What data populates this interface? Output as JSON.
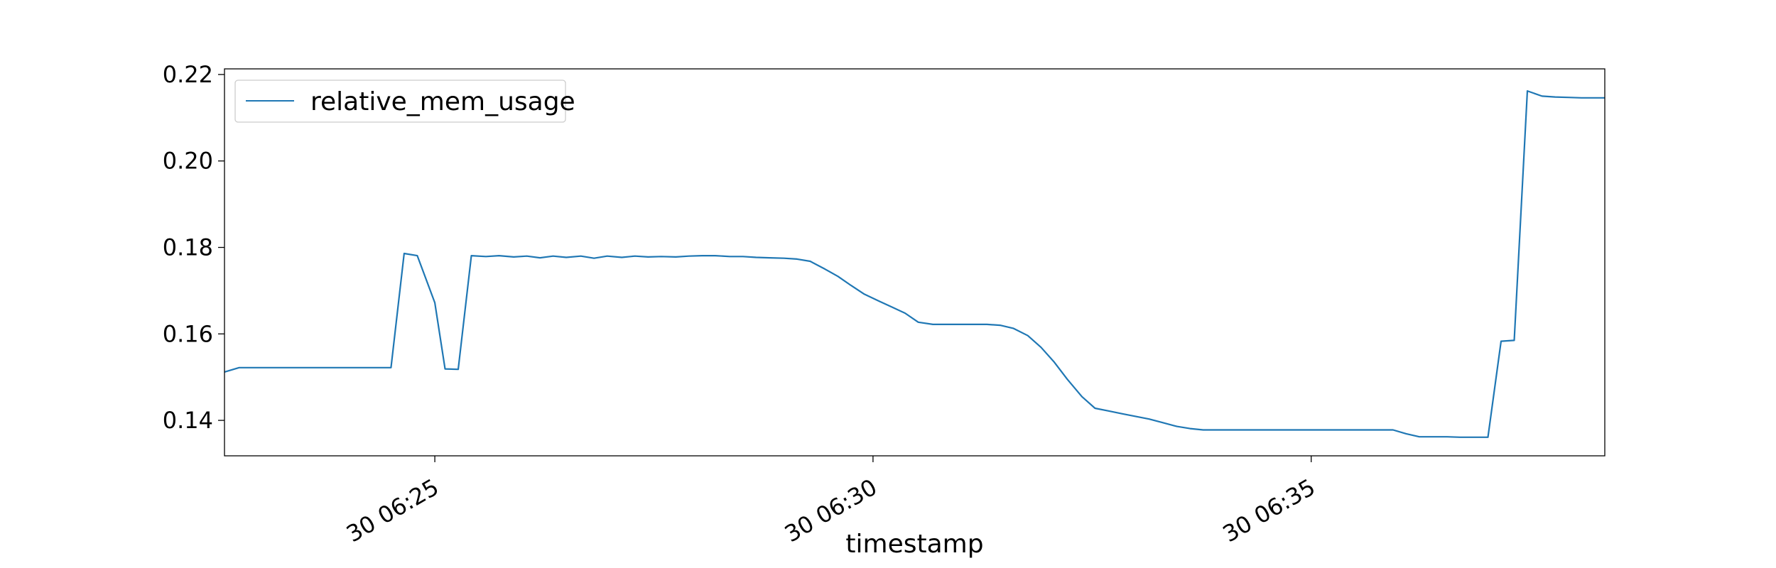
{
  "chart_data": {
    "type": "line",
    "title": "",
    "xlabel": "timestamp",
    "ylabel": "",
    "x_unit": "minutes",
    "xlim": [
      "06:22:36",
      "06:38:21"
    ],
    "ylim": [
      0.1318,
      0.2213
    ],
    "x_ticks": [
      {
        "x": "06:25:00",
        "label": "30 06:25"
      },
      {
        "x": "06:30:00",
        "label": "30 06:30"
      },
      {
        "x": "06:35:00",
        "label": "30 06:35"
      }
    ],
    "y_ticks": [
      {
        "y": 0.14,
        "label": "0.14"
      },
      {
        "y": 0.16,
        "label": "0.16"
      },
      {
        "y": 0.18,
        "label": "0.18"
      },
      {
        "y": 0.2,
        "label": "0.20"
      },
      {
        "y": 0.22,
        "label": "0.22"
      }
    ],
    "grid": false,
    "legend_position": "top-left",
    "series": [
      {
        "name": "relative_mem_usage",
        "color": "#1f77b4",
        "x": [
          "06:22:36",
          "06:22:46",
          "06:23:14",
          "06:23:42",
          "06:24:10",
          "06:24:30",
          "06:24:39",
          "06:24:48",
          "06:25:00",
          "06:25:07",
          "06:25:16",
          "06:25:25",
          "06:25:35",
          "06:25:44",
          "06:25:54",
          "06:26:03",
          "06:26:12",
          "06:26:21",
          "06:26:30",
          "06:26:40",
          "06:26:49",
          "06:26:58",
          "06:27:08",
          "06:27:17",
          "06:27:26",
          "06:27:35",
          "06:27:45",
          "06:27:54",
          "06:28:03",
          "06:28:12",
          "06:28:22",
          "06:28:31",
          "06:28:40",
          "06:28:49",
          "06:28:59",
          "06:29:08",
          "06:29:17",
          "06:29:27",
          "06:29:36",
          "06:29:45",
          "06:29:54",
          "06:30:04",
          "06:30:13",
          "06:30:22",
          "06:30:31",
          "06:30:41",
          "06:30:50",
          "06:30:59",
          "06:31:09",
          "06:31:18",
          "06:31:27",
          "06:31:36",
          "06:31:46",
          "06:31:55",
          "06:32:04",
          "06:32:13",
          "06:32:23",
          "06:32:32",
          "06:32:41",
          "06:32:51",
          "06:33:00",
          "06:33:09",
          "06:33:18",
          "06:33:28",
          "06:33:37",
          "06:33:46",
          "06:33:55",
          "06:34:05",
          "06:34:14",
          "06:34:23",
          "06:34:33",
          "06:34:42",
          "06:34:51",
          "06:35:00",
          "06:35:10",
          "06:35:19",
          "06:35:28",
          "06:35:37",
          "06:35:47",
          "06:35:56",
          "06:36:05",
          "06:36:14",
          "06:36:24",
          "06:36:33",
          "06:36:42",
          "06:36:52",
          "06:37:01",
          "06:37:10",
          "06:37:19",
          "06:37:28",
          "06:37:38",
          "06:37:47",
          "06:37:56",
          "06:38:05",
          "06:38:15",
          "06:38:21"
        ],
        "y": [
          0.1512,
          0.1522,
          0.1522,
          0.1522,
          0.1522,
          0.1522,
          0.1786,
          0.1781,
          0.1672,
          0.1519,
          0.1518,
          0.1781,
          0.1779,
          0.1781,
          0.1778,
          0.178,
          0.1776,
          0.178,
          0.1777,
          0.178,
          0.1775,
          0.178,
          0.1777,
          0.178,
          0.1778,
          0.1779,
          0.1778,
          0.178,
          0.1781,
          0.1781,
          0.1779,
          0.1779,
          0.1777,
          0.1776,
          0.1775,
          0.1773,
          0.1768,
          0.175,
          0.1733,
          0.1712,
          0.1692,
          0.1676,
          0.1662,
          0.1648,
          0.1627,
          0.1622,
          0.1622,
          0.1622,
          0.1622,
          0.1622,
          0.162,
          0.1613,
          0.1596,
          0.1569,
          0.1535,
          0.1495,
          0.1455,
          0.1428,
          0.1422,
          0.1415,
          0.1409,
          0.1403,
          0.1395,
          0.1386,
          0.1381,
          0.1378,
          0.1378,
          0.1378,
          0.1378,
          0.1378,
          0.1378,
          0.1378,
          0.1378,
          0.1378,
          0.1378,
          0.1378,
          0.1378,
          0.1378,
          0.1378,
          0.1378,
          0.1369,
          0.1362,
          0.1362,
          0.1362,
          0.1361,
          0.1361,
          0.1361,
          0.1583,
          0.1585,
          0.2162,
          0.215,
          0.2148,
          0.2147,
          0.2146,
          0.2146,
          0.2146
        ]
      }
    ]
  }
}
